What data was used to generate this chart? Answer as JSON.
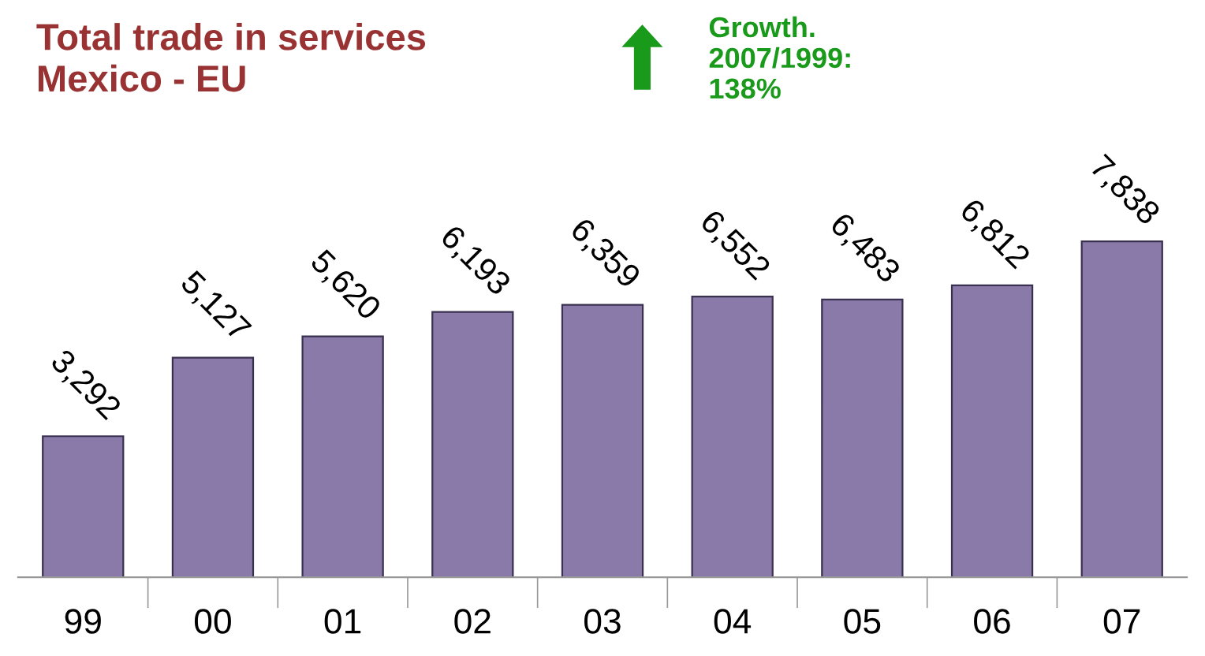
{
  "chart_data": {
    "type": "bar",
    "title": "Total trade in services\nMexico - EU",
    "categories": [
      "99",
      "00",
      "01",
      "02",
      "03",
      "04",
      "05",
      "06",
      "07"
    ],
    "values": [
      3292,
      5127,
      5620,
      6193,
      6359,
      6552,
      6483,
      6812,
      7838
    ],
    "value_labels": [
      "3,292",
      "5,127",
      "5,620",
      "6,193",
      "6,359",
      "6,552",
      "6,483",
      "6,812",
      "7,838"
    ],
    "color": "#8a7aaa",
    "annotations": [
      "Growth.\n2007/1999:\n138%"
    ],
    "grid": false,
    "legend": false
  }
}
